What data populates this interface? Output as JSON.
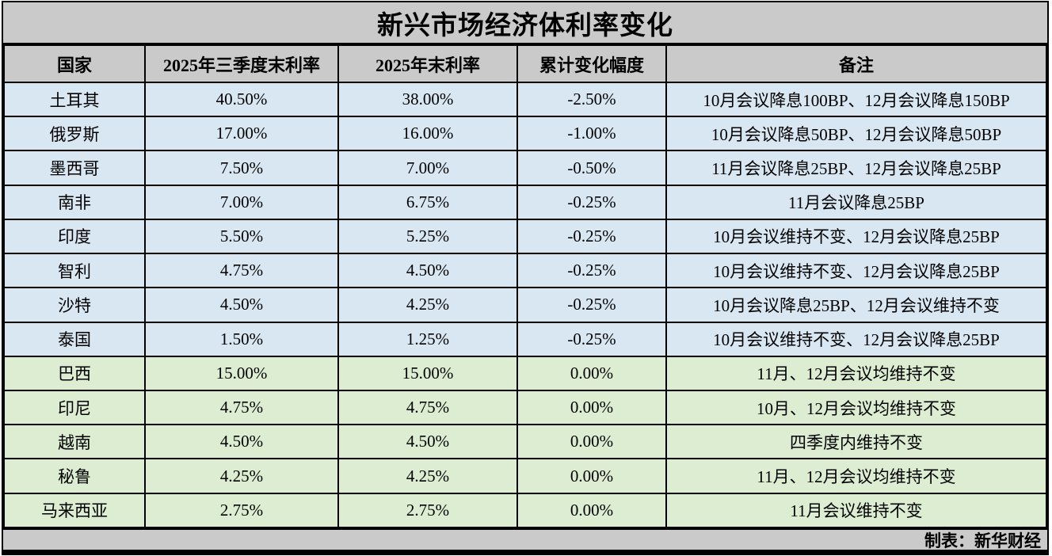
{
  "title": "新兴市场经济体利率变化",
  "footer": {
    "credit": "制表：新华财经"
  },
  "colors": {
    "title_bg": "#cacaca",
    "header_bg": "#cacaca",
    "footer_bg": "#cacaca",
    "cut_row_bg": "#d9e7f3",
    "hold_row_bg": "#dcedd2",
    "border": "#000000"
  },
  "chart_data": {
    "type": "table",
    "title": "新兴市场经济体利率变化",
    "columns": [
      "国家",
      "2025年三季度末利率",
      "2025年末利率",
      "累计变化幅度",
      "备注"
    ],
    "rows": [
      {
        "country": "土耳其",
        "q3_rate": "40.50%",
        "year_end_rate": "38.00%",
        "change": "-2.50%",
        "note": "10月会议降息100BP、12月会议降息150BP",
        "group": "cut"
      },
      {
        "country": "俄罗斯",
        "q3_rate": "17.00%",
        "year_end_rate": "16.00%",
        "change": "-1.00%",
        "note": "10月会议降息50BP、12月会议降息50BP",
        "group": "cut"
      },
      {
        "country": "墨西哥",
        "q3_rate": "7.50%",
        "year_end_rate": "7.00%",
        "change": "-0.50%",
        "note": "11月会议降息25BP、12月会议降息25BP",
        "group": "cut"
      },
      {
        "country": "南非",
        "q3_rate": "7.00%",
        "year_end_rate": "6.75%",
        "change": "-0.25%",
        "note": "11月会议降息25BP",
        "group": "cut"
      },
      {
        "country": "印度",
        "q3_rate": "5.50%",
        "year_end_rate": "5.25%",
        "change": "-0.25%",
        "note": "10月会议维持不变、12月会议降息25BP",
        "group": "cut"
      },
      {
        "country": "智利",
        "q3_rate": "4.75%",
        "year_end_rate": "4.50%",
        "change": "-0.25%",
        "note": "10月会议维持不变、12月会议降息25BP",
        "group": "cut"
      },
      {
        "country": "沙特",
        "q3_rate": "4.50%",
        "year_end_rate": "4.25%",
        "change": "-0.25%",
        "note": "10月会议降息25BP、12月会议维持不变",
        "group": "cut"
      },
      {
        "country": "泰国",
        "q3_rate": "1.50%",
        "year_end_rate": "1.25%",
        "change": "-0.25%",
        "note": "10月会议维持不变、12月会议降息25BP",
        "group": "cut"
      },
      {
        "country": "巴西",
        "q3_rate": "15.00%",
        "year_end_rate": "15.00%",
        "change": "0.00%",
        "note": "11月、12月会议均维持不变",
        "group": "hold"
      },
      {
        "country": "印尼",
        "q3_rate": "4.75%",
        "year_end_rate": "4.75%",
        "change": "0.00%",
        "note": "10月、12月会议均维持不变",
        "group": "hold"
      },
      {
        "country": "越南",
        "q3_rate": "4.50%",
        "year_end_rate": "4.50%",
        "change": "0.00%",
        "note": "四季度内维持不变",
        "group": "hold"
      },
      {
        "country": "秘鲁",
        "q3_rate": "4.25%",
        "year_end_rate": "4.25%",
        "change": "0.00%",
        "note": "11月、12月会议均维持不变",
        "group": "hold"
      },
      {
        "country": "马来西亚",
        "q3_rate": "2.75%",
        "year_end_rate": "2.75%",
        "change": "0.00%",
        "note": "11月会议维持不变",
        "group": "hold"
      }
    ]
  }
}
